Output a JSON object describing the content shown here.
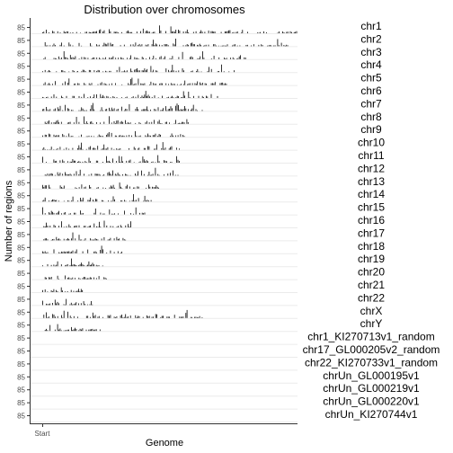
{
  "chart_data": {
    "type": "bar",
    "title": "Distribution over chromosomes",
    "xlabel": "Genome",
    "ylabel": "Number of regions",
    "x_ticks": [
      "Start"
    ],
    "grid": true,
    "legend": "right",
    "series": [
      {
        "name": "chr1",
        "y_tick": "85",
        "rel_length": 1.0
      },
      {
        "name": "chr2",
        "y_tick": "85",
        "rel_length": 0.97
      },
      {
        "name": "chr3",
        "y_tick": "85",
        "rel_length": 0.8
      },
      {
        "name": "chr4",
        "y_tick": "85",
        "rel_length": 0.76
      },
      {
        "name": "chr5",
        "y_tick": "85",
        "rel_length": 0.73
      },
      {
        "name": "chr6",
        "y_tick": "85",
        "rel_length": 0.69
      },
      {
        "name": "chr7",
        "y_tick": "85",
        "rel_length": 0.64
      },
      {
        "name": "chr8",
        "y_tick": "85",
        "rel_length": 0.58
      },
      {
        "name": "chr9",
        "y_tick": "85",
        "rel_length": 0.56
      },
      {
        "name": "chr10",
        "y_tick": "85",
        "rel_length": 0.54
      },
      {
        "name": "chr11",
        "y_tick": "85",
        "rel_length": 0.54
      },
      {
        "name": "chr12",
        "y_tick": "85",
        "rel_length": 0.54
      },
      {
        "name": "chr13",
        "y_tick": "85",
        "rel_length": 0.46
      },
      {
        "name": "chr14",
        "y_tick": "85",
        "rel_length": 0.43
      },
      {
        "name": "chr15",
        "y_tick": "85",
        "rel_length": 0.41
      },
      {
        "name": "chr16",
        "y_tick": "85",
        "rel_length": 0.36
      },
      {
        "name": "chr17",
        "y_tick": "85",
        "rel_length": 0.33
      },
      {
        "name": "chr18",
        "y_tick": "85",
        "rel_length": 0.32
      },
      {
        "name": "chr19",
        "y_tick": "85",
        "rel_length": 0.24
      },
      {
        "name": "chr20",
        "y_tick": "85",
        "rel_length": 0.26
      },
      {
        "name": "chr21",
        "y_tick": "85",
        "rel_length": 0.19
      },
      {
        "name": "chr22",
        "y_tick": "85",
        "rel_length": 0.2
      },
      {
        "name": "chrX",
        "y_tick": "85",
        "rel_length": 0.63
      },
      {
        "name": "chrY",
        "y_tick": "85",
        "rel_length": 0.23
      },
      {
        "name": "chr1_KI270713v1_random",
        "y_tick": "85",
        "rel_length": 0.0
      },
      {
        "name": "chr17_GL000205v2_random",
        "y_tick": "85",
        "rel_length": 0.0
      },
      {
        "name": "chr22_KI270733v1_random",
        "y_tick": "85",
        "rel_length": 0.0
      },
      {
        "name": "chrUn_GL000195v1",
        "y_tick": "85",
        "rel_length": 0.0
      },
      {
        "name": "chrUn_GL000219v1",
        "y_tick": "85",
        "rel_length": 0.0
      },
      {
        "name": "chrUn_GL000220v1",
        "y_tick": "85",
        "rel_length": 0.0
      },
      {
        "name": "chrUn_KI270744v1",
        "y_tick": "85",
        "rel_length": 0.0
      }
    ],
    "colors": {
      "bars": "#000000",
      "grid": "#ebebeb",
      "axis": "#333333",
      "text": "#000000",
      "tick_text": "#4d4d4d"
    }
  }
}
